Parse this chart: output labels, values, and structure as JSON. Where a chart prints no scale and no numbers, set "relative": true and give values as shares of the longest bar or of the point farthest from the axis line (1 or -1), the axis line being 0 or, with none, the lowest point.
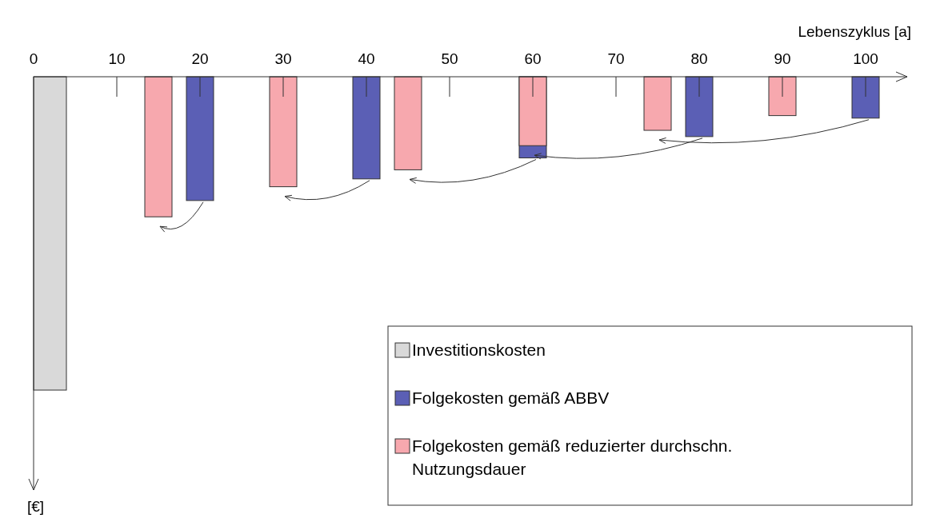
{
  "chart_data": {
    "type": "bar",
    "relative": true,
    "xlabel": "Lebenszyklus [a]",
    "annotations": [
      "[€]"
    ],
    "xlim": [
      0,
      105
    ],
    "xticks": [
      0,
      10,
      20,
      30,
      40,
      50,
      60,
      70,
      80,
      90,
      100
    ],
    "legend": "bottom right",
    "series": [
      {
        "name": "Investitionskosten",
        "color": "#d9d9d9",
        "x": [
          2
        ],
        "values": [
          -1
        ]
      },
      {
        "name": "Folgekosten gemäß ABBV",
        "color": "#5b5fb5",
        "x": [
          20,
          40,
          60,
          80,
          100
        ],
        "values": [
          -0.395,
          -0.326,
          -0.259,
          -0.191,
          -0.132
        ]
      },
      {
        "name": "Folgekosten gemäß reduzierter durchschn. Nutzungsdauer",
        "color": "#f7a8ae",
        "x": [
          15,
          30,
          45,
          60,
          75,
          90
        ],
        "values": [
          -0.447,
          -0.351,
          -0.297,
          -0.22,
          -0.171,
          -0.124
        ]
      }
    ]
  }
}
